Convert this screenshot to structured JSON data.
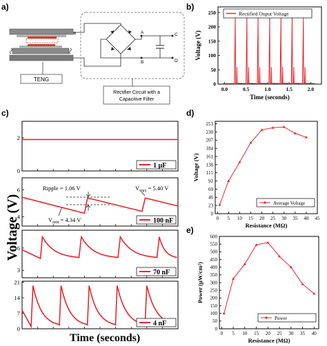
{
  "panel_labels": {
    "a": "a)",
    "b": "b)",
    "c": "c)",
    "d": "d)",
    "e": "e)"
  },
  "schematic": {
    "teng_label": "TENG",
    "node_a": "A",
    "node_b": "B",
    "node_c": "C",
    "node_d": "D",
    "rectifier_caption_1": "Rectifier Circuit with a",
    "rectifier_caption_2": "Capacitive Filter"
  },
  "panel_c": {
    "ylabel": "Voltage (V)",
    "xlabel": "Time (seconds)",
    "ripple_label": "Ripple = 1.06 V",
    "vmax_prefix": "V",
    "vmax_sub": "max",
    "vmax_value": "= 5.40 V",
    "vmin_prefix": "V",
    "vmin_sub": "min",
    "vmin_value": "= 4.34 V"
  },
  "colors": {
    "series": "#e8262c",
    "axis": "#000000",
    "grid_box": "#000000"
  },
  "chart_data": [
    {
      "id": "b",
      "type": "line",
      "title": "",
      "xlabel": "Time (seconds)",
      "ylabel": "Voltage (V)",
      "xlim": [
        -0.15,
        2.25
      ],
      "ylim": [
        0,
        270
      ],
      "xticks": [
        "0.0",
        "0.5",
        "1.0",
        "1.5",
        "2.0"
      ],
      "xtick_values": [
        0,
        0.5,
        1,
        1.5,
        2
      ],
      "yticks": [
        "0",
        "50",
        "100",
        "150",
        "200",
        "250"
      ],
      "ytick_values": [
        0,
        50,
        100,
        150,
        200,
        250
      ],
      "series": [
        {
          "name": "Rectified Ouput Voltage",
          "peak_times": [
            0.25,
            0.52,
            0.78,
            1.05,
            1.31,
            1.57,
            1.83
          ],
          "peak_value": 240,
          "secondary_value": 60
        }
      ],
      "legend_position": "top-right"
    },
    {
      "id": "c1",
      "type": "line",
      "ylim": [
        0,
        3
      ],
      "yticks": [
        "0",
        "2"
      ],
      "ytick_values": [
        0,
        2
      ],
      "series": [
        {
          "name": "1 μF",
          "values_constant": 1.9
        }
      ],
      "legend_position": "bottom-right"
    },
    {
      "id": "c2",
      "type": "line",
      "ylim": [
        3.3,
        6.9
      ],
      "yticks": [
        "4",
        "6"
      ],
      "ytick_values": [
        4,
        6
      ],
      "series": [
        {
          "name": "100 nF",
          "vmax": 5.4,
          "vmin": 4.34,
          "ripple": 1.06,
          "jump_times": [
            0.4,
            0.77
          ],
          "base_start": 5.45
        }
      ],
      "legend_position": "bottom-right"
    },
    {
      "id": "c3",
      "type": "line",
      "ylim": [
        2,
        8.4
      ],
      "yticks": [
        "3",
        "6"
      ],
      "ytick_values": [
        3,
        6
      ],
      "series": [
        {
          "name": "70 nF",
          "peak": 7.5,
          "trough": 4.6,
          "peak_times": [
            0.13,
            0.38,
            0.63,
            0.88
          ]
        }
      ],
      "legend_position": "bottom-right"
    },
    {
      "id": "c4",
      "type": "line",
      "ylim": [
        0,
        21.5
      ],
      "yticks": [
        "0",
        "7",
        "14",
        "21"
      ],
      "ytick_values": [
        0,
        7,
        14,
        21
      ],
      "series": [
        {
          "name": "4 nF",
          "peak": 19.5,
          "trough": 1,
          "peak_times": [
            0.07,
            0.25,
            0.43,
            0.61,
            0.8
          ]
        }
      ],
      "legend_position": "bottom-right"
    },
    {
      "id": "d",
      "type": "line",
      "xlabel": "Resistance (MΩ)",
      "ylabel": "Voltage (V)",
      "xlim": [
        -1,
        45
      ],
      "ylim": [
        0,
        260
      ],
      "xticks": [
        "0",
        "5",
        "10",
        "15",
        "20",
        "25",
        "30",
        "35",
        "40",
        "45"
      ],
      "xtick_values": [
        0,
        5,
        10,
        15,
        20,
        25,
        30,
        35,
        40,
        45
      ],
      "yticks": [
        "0",
        "23",
        "46",
        "69",
        "92",
        "115",
        "138",
        "161",
        "184",
        "207",
        "230",
        "253"
      ],
      "ytick_values": [
        0,
        23,
        46,
        69,
        92,
        115,
        138,
        161,
        184,
        207,
        230,
        253
      ],
      "series": [
        {
          "name": "Average Voltage",
          "x": [
            1,
            5,
            10,
            15,
            20,
            25,
            30,
            35,
            40
          ],
          "y": [
            25,
            92,
            145,
            200,
            236,
            242,
            244,
            226,
            215
          ]
        }
      ],
      "legend_position": "bottom-right"
    },
    {
      "id": "e",
      "type": "line",
      "xlabel": "Resistance (MΩ)",
      "ylabel": "Power (μW/cm²)",
      "xlim": [
        -1,
        42
      ],
      "ylim": [
        0,
        600
      ],
      "xticks": [
        "0",
        "5",
        "10",
        "15",
        "20",
        "25",
        "30",
        "35",
        "40"
      ],
      "xtick_values": [
        0,
        5,
        10,
        15,
        20,
        25,
        30,
        35,
        40
      ],
      "yticks": [
        "0",
        "50",
        "100",
        "150",
        "200",
        "250",
        "300",
        "350",
        "400",
        "450",
        "500",
        "550",
        "600"
      ],
      "ytick_values": [
        0,
        50,
        100,
        150,
        200,
        250,
        300,
        350,
        400,
        450,
        500,
        550,
        600
      ],
      "series": [
        {
          "name": "Power",
          "x": [
            1,
            5,
            10,
            15,
            20,
            25,
            30,
            35,
            40
          ],
          "y": [
            100,
            325,
            420,
            545,
            560,
            470,
            400,
            290,
            228
          ]
        }
      ],
      "legend_position": "bottom-right"
    }
  ]
}
